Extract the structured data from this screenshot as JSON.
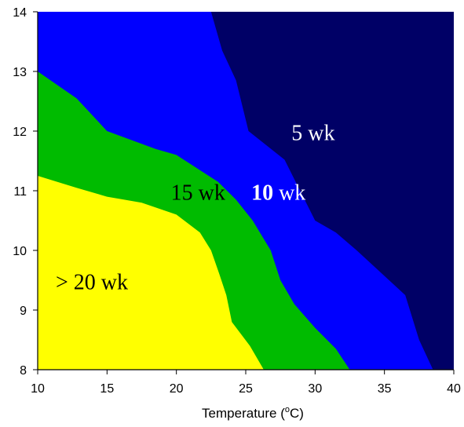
{
  "chart_data": {
    "type": "area",
    "xlabel": "Temperature (°C)",
    "xlabel_parts": {
      "prefix": "Temperature (",
      "superscript": "o",
      "suffix": "C)"
    },
    "xlim": [
      10,
      40
    ],
    "ylim": [
      8,
      14
    ],
    "xticks": [
      "10",
      "15",
      "20",
      "25",
      "30",
      "35",
      "40"
    ],
    "yticks": [
      "8",
      "9",
      "10",
      "11",
      "12",
      "13",
      "14"
    ],
    "grid": false,
    "legend": "none",
    "colors": {
      "yellow": "#ffff00",
      "green": "#00bb00",
      "blue": "#0000ff",
      "navy": "#000066",
      "axis": "#000000"
    },
    "regions": [
      {
        "name": "> 20 wk",
        "label_parts": [
          {
            "text": "> 20 wk",
            "bold": false
          }
        ],
        "label_color": "#000000",
        "fill": "#ffff00",
        "boundary_upper": [
          [
            10,
            11.25
          ],
          [
            12.8,
            11.05
          ],
          [
            15,
            10.9
          ],
          [
            17.5,
            10.8
          ],
          [
            20,
            10.6
          ],
          [
            21.7,
            10.3
          ],
          [
            22.5,
            10.0
          ],
          [
            23.1,
            9.6
          ],
          [
            23.6,
            9.25
          ],
          [
            24,
            8.8
          ],
          [
            25.3,
            8.4
          ],
          [
            26.3,
            8.0
          ]
        ]
      },
      {
        "name": "15 wk",
        "label_parts": [
          {
            "text": "15 wk",
            "bold": false
          }
        ],
        "label_color": "#000000",
        "fill": "#00bb00",
        "boundary_upper": [
          [
            10,
            13.0
          ],
          [
            12.8,
            12.55
          ],
          [
            15,
            12.0
          ],
          [
            18.5,
            11.7
          ],
          [
            20,
            11.6
          ],
          [
            22,
            11.3
          ],
          [
            23,
            11.15
          ],
          [
            24.3,
            10.85
          ],
          [
            25.5,
            10.5
          ],
          [
            26.8,
            10.0
          ],
          [
            27.5,
            9.5
          ],
          [
            28.5,
            9.1
          ],
          [
            30,
            8.7
          ],
          [
            31.5,
            8.35
          ],
          [
            32.5,
            8.0
          ]
        ]
      },
      {
        "name": "10 wk",
        "label_parts": [
          {
            "text": "10",
            "bold": true
          },
          {
            "text": " wk",
            "bold": false
          }
        ],
        "label_color": "#ffffff",
        "fill": "#0000ff",
        "boundary_upper": [
          [
            22.5,
            14.0
          ],
          [
            23.3,
            13.35
          ],
          [
            24.3,
            12.85
          ],
          [
            25.2,
            12.0
          ],
          [
            27.8,
            11.52
          ],
          [
            30,
            10.5
          ],
          [
            31.5,
            10.3
          ],
          [
            33,
            10.0
          ],
          [
            36.5,
            9.25
          ],
          [
            37.5,
            8.5
          ],
          [
            38.5,
            8.0
          ]
        ]
      },
      {
        "name": "5 wk",
        "label_parts": [
          {
            "text": "5 wk",
            "bold": false
          }
        ],
        "label_color": "#ffffff",
        "fill": "#000066",
        "boundary_upper": []
      }
    ],
    "label_positions": {
      "> 20 wk": [
        11.3,
        9.35
      ],
      "15 wk": [
        19.6,
        10.85
      ],
      "10 wk": [
        25.4,
        10.85
      ],
      "5 wk": [
        28.3,
        11.85
      ]
    }
  }
}
